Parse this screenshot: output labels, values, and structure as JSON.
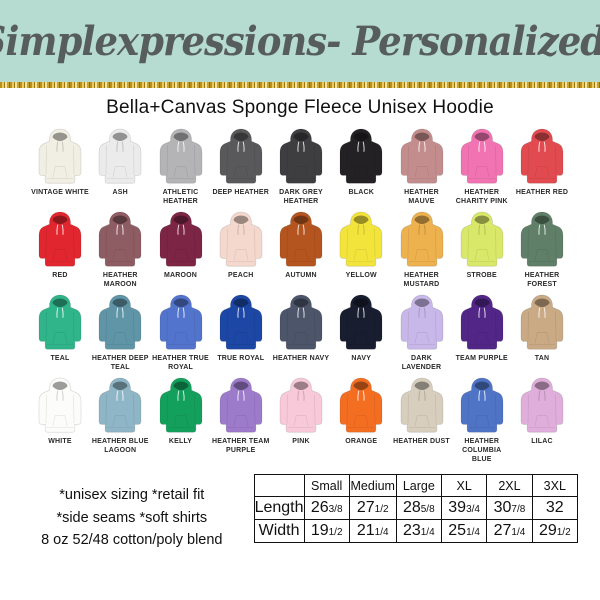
{
  "header": {
    "brand": "Simplexpressions- Personalized!"
  },
  "title": "Bella+Canvas Sponge Fleece Unisex Hoodie",
  "colors_grid": {
    "rows": [
      [
        {
          "name": "VINTAGE WHITE",
          "hex": "#f1eee3"
        },
        {
          "name": "ASH",
          "hex": "#ebebeb"
        },
        {
          "name": "ATHLETIC HEATHER",
          "hex": "#b4b4b6"
        },
        {
          "name": "DEEP HEATHER",
          "hex": "#59595b"
        },
        {
          "name": "DARK GREY HEATHER",
          "hex": "#3e3e40"
        },
        {
          "name": "BLACK",
          "hex": "#232124"
        },
        {
          "name": "HEATHER MAUVE",
          "hex": "#c48d8d"
        },
        {
          "name": "HEATHER CHARITY PINK",
          "hex": "#f173b2"
        },
        {
          "name": "HEATHER RED",
          "hex": "#e14b50"
        }
      ],
      [
        {
          "name": "RED",
          "hex": "#e22630"
        },
        {
          "name": "HEATHER MAROON",
          "hex": "#8e5c63"
        },
        {
          "name": "MAROON",
          "hex": "#7c2545"
        },
        {
          "name": "PEACH",
          "hex": "#f5d8cd"
        },
        {
          "name": "AUTUMN",
          "hex": "#b4551f"
        },
        {
          "name": "YELLOW",
          "hex": "#f3e43c"
        },
        {
          "name": "HEATHER MUSTARD",
          "hex": "#edb14e"
        },
        {
          "name": "STROBE",
          "hex": "#d9e869"
        },
        {
          "name": "HEATHER FOREST",
          "hex": "#5f7f68"
        }
      ],
      [
        {
          "name": "TEAL",
          "hex": "#2fb589"
        },
        {
          "name": "HEATHER DEEP TEAL",
          "hex": "#5f95a6"
        },
        {
          "name": "HEATHER TRUE ROYAL",
          "hex": "#5374cd"
        },
        {
          "name": "TRUE ROYAL",
          "hex": "#1c47a5"
        },
        {
          "name": "HEATHER NAVY",
          "hex": "#4c5569"
        },
        {
          "name": "NAVY",
          "hex": "#181d2f"
        },
        {
          "name": "DARK LAVENDER",
          "hex": "#c8b7e9"
        },
        {
          "name": "TEAM PURPLE",
          "hex": "#512687"
        },
        {
          "name": "TAN",
          "hex": "#c9aa85"
        }
      ],
      [
        {
          "name": "WHITE",
          "hex": "#fcfcfa"
        },
        {
          "name": "HEATHER BLUE LAGOON",
          "hex": "#8fb6c6"
        },
        {
          "name": "KELLY",
          "hex": "#13a05c"
        },
        {
          "name": "HEATHER TEAM PURPLE",
          "hex": "#9d7bcb"
        },
        {
          "name": "PINK",
          "hex": "#f8c9d9"
        },
        {
          "name": "ORANGE",
          "hex": "#f46e22"
        },
        {
          "name": "HEATHER DUST",
          "hex": "#d7cebe"
        },
        {
          "name": "HEATHER COLUMBIA BLUE",
          "hex": "#4f74c6"
        },
        {
          "name": "LILAC",
          "hex": "#e0aeda"
        }
      ]
    ]
  },
  "notes": [
    "*unisex sizing *retail fit",
    "*side seams  *soft shirts",
    "8 oz 52/48 cotton/poly blend"
  ],
  "size_chart": {
    "columns": [
      "Small",
      "Medium",
      "Large",
      "XL",
      "2XL",
      "3XL"
    ],
    "rows": [
      {
        "label": "Length",
        "values": [
          [
            "26",
            "3/8"
          ],
          [
            "27",
            "1/2"
          ],
          [
            "28",
            "5/8"
          ],
          [
            "39",
            "3/4"
          ],
          [
            "30",
            "7/8"
          ],
          [
            "32",
            ""
          ]
        ]
      },
      {
        "label": "Width",
        "values": [
          [
            "19",
            "1/2"
          ],
          [
            "21",
            "1/4"
          ],
          [
            "23",
            "1/4"
          ],
          [
            "25",
            "1/4"
          ],
          [
            "27",
            "1/4"
          ],
          [
            "29",
            "1/2"
          ]
        ]
      }
    ]
  },
  "theme": {
    "banner_bg": "#b6dcd1",
    "banner_text": "#575d5c",
    "glitter_gold": "#c7a22e",
    "title_color": "#111111"
  }
}
